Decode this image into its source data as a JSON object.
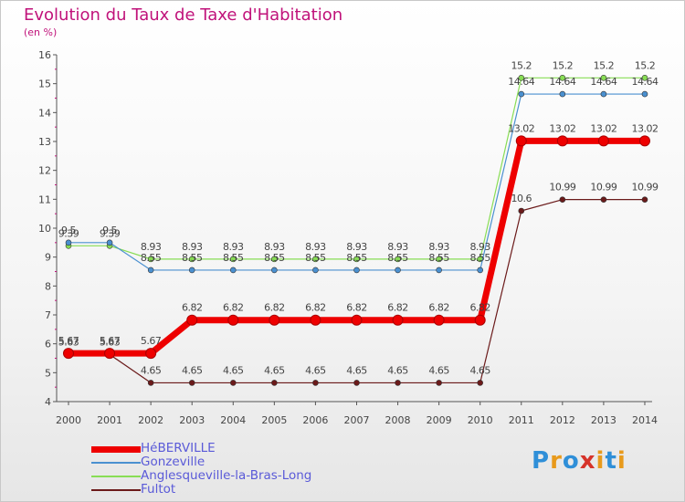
{
  "title": "Evolution du Taux de Taxe d'Habitation",
  "subtitle": "(en %)",
  "logo": {
    "letters": [
      "P",
      "r",
      "o",
      "x",
      "i",
      "t",
      "i"
    ],
    "colors": [
      "#2f8fd8",
      "#e89a1c",
      "#2f8fd8",
      "#d6332a",
      "#e89a1c",
      "#2f8fd8",
      "#e89a1c"
    ]
  },
  "chart_data": {
    "type": "line",
    "title": "Evolution du Taux de Taxe d'Habitation",
    "ylabel": "(en %)",
    "xlabel": "",
    "x": [
      "2000",
      "2001",
      "2002",
      "2003",
      "2004",
      "2005",
      "2006",
      "2007",
      "2008",
      "2009",
      "2010",
      "2011",
      "2012",
      "2013",
      "2014"
    ],
    "ylim": [
      4,
      16
    ],
    "yticks": [
      "4",
      "5",
      "6",
      "7",
      "8",
      "9",
      "10",
      "11",
      "12",
      "13",
      "14",
      "15",
      "16"
    ],
    "grid": false,
    "legend_position": "bottom-left",
    "series": [
      {
        "name": "HéBERVILLE",
        "color": "#ee0000",
        "values": [
          5.67,
          5.67,
          5.67,
          6.82,
          6.82,
          6.82,
          6.82,
          6.82,
          6.82,
          6.82,
          6.82,
          13.02,
          13.02,
          13.02,
          13.02
        ],
        "labels": [
          "5.67",
          "5.67",
          "5.67",
          "6.82",
          "6.82",
          "6.82",
          "6.82",
          "6.82",
          "6.82",
          "6.82",
          "6.82",
          "13.02",
          "13.02",
          "13.02",
          "13.02"
        ]
      },
      {
        "name": "Gonzeville",
        "color": "#4a90d0",
        "values": [
          9.5,
          9.5,
          8.55,
          8.55,
          8.55,
          8.55,
          8.55,
          8.55,
          8.55,
          8.55,
          8.55,
          14.64,
          14.64,
          14.64,
          14.64
        ],
        "labels": [
          "9.5",
          "9.5",
          "8.55",
          "8.55",
          "8.55",
          "8.55",
          "8.55",
          "8.55",
          "8.55",
          "8.55",
          "8.55",
          "14.64",
          "14.64",
          "14.64",
          "14.64"
        ]
      },
      {
        "name": "Anglesqueville-la-Bras-Long",
        "color": "#88dd55",
        "values": [
          9.39,
          9.39,
          8.93,
          8.93,
          8.93,
          8.93,
          8.93,
          8.93,
          8.93,
          8.93,
          8.93,
          15.2,
          15.2,
          15.2,
          15.2
        ],
        "labels": [
          "9.39",
          "9.39",
          "8.93",
          "8.93",
          "8.93",
          "8.93",
          "8.93",
          "8.93",
          "8.93",
          "8.93",
          "8.93",
          "15.2",
          "15.2",
          "15.2",
          "15.2"
        ]
      },
      {
        "name": "Fultot",
        "color": "#6b1a1a",
        "values": [
          5.63,
          5.63,
          4.65,
          4.65,
          4.65,
          4.65,
          4.65,
          4.65,
          4.65,
          4.65,
          4.65,
          10.6,
          10.99,
          10.99,
          10.99
        ],
        "labels": [
          "5.63",
          "5.63",
          "4.65",
          "4.65",
          "4.65",
          "4.65",
          "4.65",
          "4.65",
          "4.65",
          "4.65",
          "4.65",
          "10.6",
          "10.99",
          "10.99",
          "10.99"
        ]
      }
    ]
  }
}
